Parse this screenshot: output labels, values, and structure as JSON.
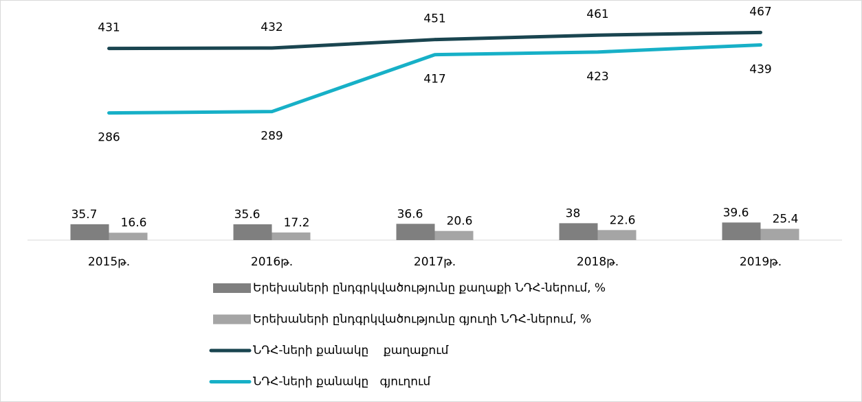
{
  "chart_data": {
    "type": "combo",
    "categories": [
      "2015թ.",
      "2016թ.",
      "2017թ.",
      "2018թ.",
      "2019թ."
    ],
    "ylim": [
      0,
      540
    ],
    "series": [
      {
        "name": "Երեխաների ընդգրկվածությունը քաղաքի ՆԴՀ-ներում, %",
        "type": "bar",
        "color": "#7f7f7f",
        "values": [
          35.7,
          35.6,
          36.6,
          38,
          39.6
        ]
      },
      {
        "name": "Երեխաների ընդգրկվածությունը գյուղի ՆԴՀ-ներում, %",
        "type": "bar",
        "color": "#a5a5a5",
        "values": [
          16.6,
          17.2,
          20.6,
          22.6,
          25.4
        ]
      },
      {
        "name": "ՆԴՀ-ների քանակը    քաղաքում",
        "type": "line",
        "color": "#1a4550",
        "values": [
          431,
          432,
          451,
          461,
          467
        ]
      },
      {
        "name": "ՆԴՀ-ների քանակը   գյուղում",
        "type": "line",
        "color": "#17b0c7",
        "values": [
          286,
          289,
          417,
          423,
          439
        ]
      }
    ]
  }
}
